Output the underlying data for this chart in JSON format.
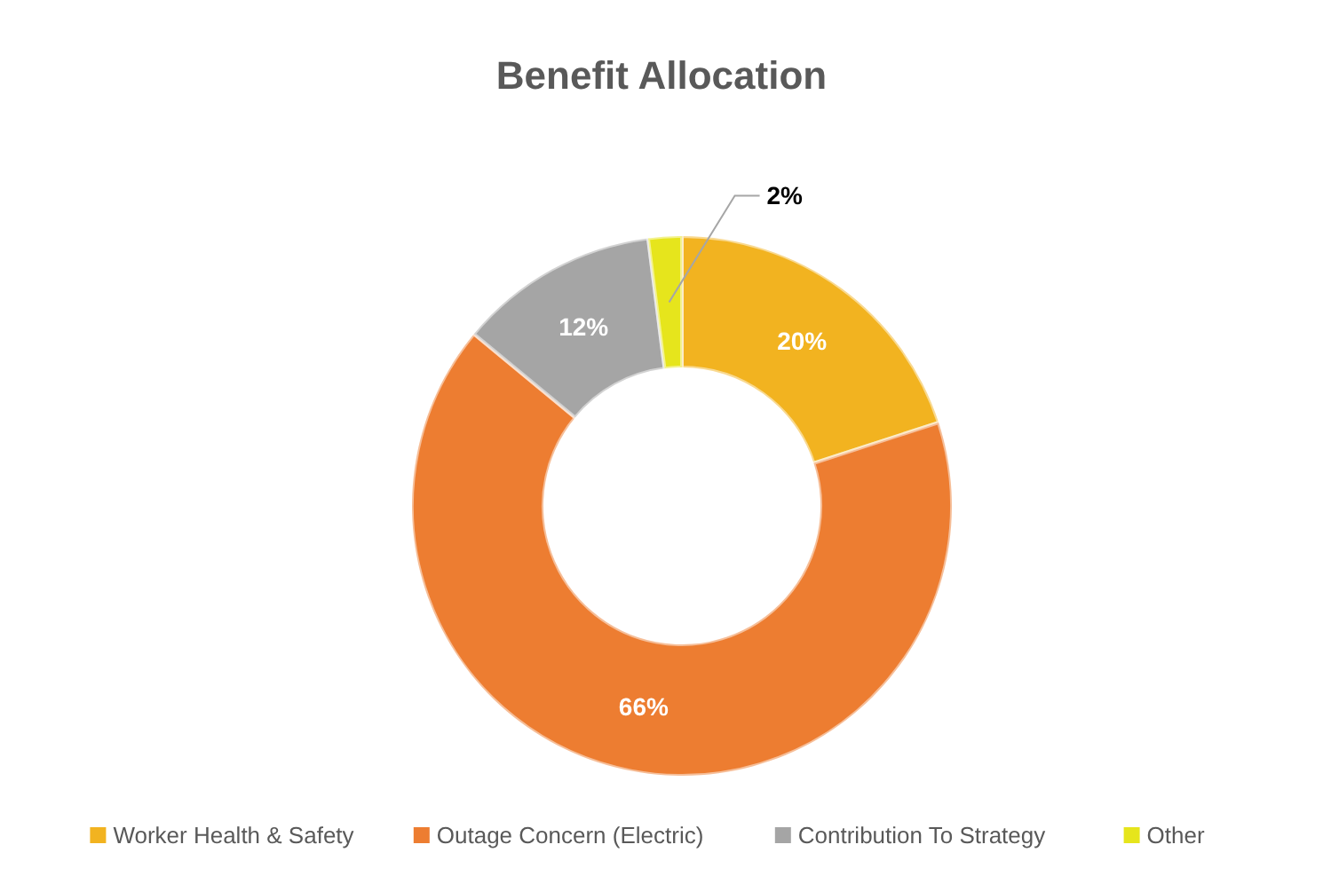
{
  "chart_data": {
    "type": "donut",
    "title": "Benefit Allocation",
    "categories": [
      "Worker Health & Safety",
      "Outage Concern (Electric)",
      "Contribution To Strategy",
      "Other"
    ],
    "values": [
      20,
      66,
      12,
      2
    ],
    "colors": [
      "#f2b320",
      "#ed7d31",
      "#a5a5a5",
      "#e6e51c"
    ],
    "value_labels": [
      "20%",
      "66%",
      "12%",
      "2%"
    ],
    "legend": "bottom"
  }
}
